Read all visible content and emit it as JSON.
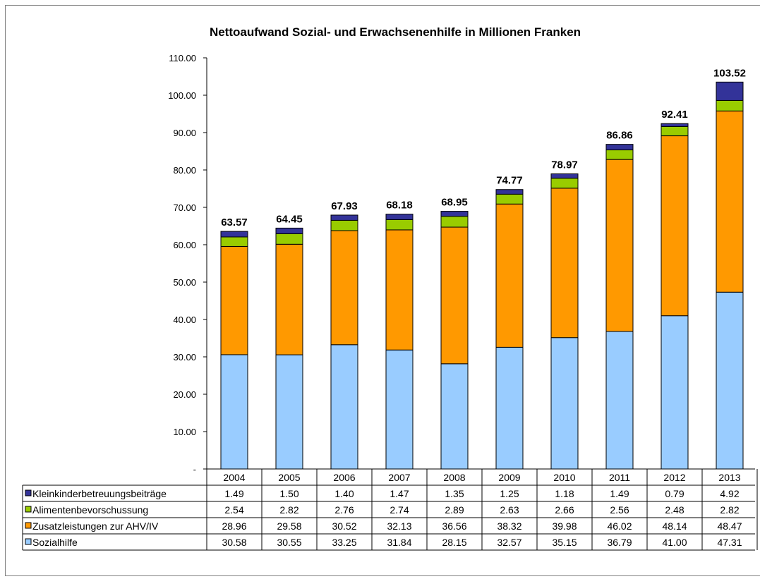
{
  "chart_data": {
    "type": "bar",
    "stacked": true,
    "title": "Nettoaufwand Sozial- und Erwachsenenhilfe in Millionen Franken",
    "categories": [
      "2004",
      "2005",
      "2006",
      "2007",
      "2008",
      "2009",
      "2010",
      "2011",
      "2012",
      "2013"
    ],
    "ylim": [
      0,
      110
    ],
    "yticks": [
      "-",
      "10.00",
      "20.00",
      "30.00",
      "40.00",
      "50.00",
      "60.00",
      "70.00",
      "80.00",
      "90.00",
      "100.00",
      "110.00"
    ],
    "totals": [
      "63.57",
      "64.45",
      "67.93",
      "68.18",
      "68.95",
      "74.77",
      "78.97",
      "86.86",
      "92.41",
      "103.52"
    ],
    "grid": false,
    "legend": "data-table-left",
    "series": [
      {
        "name": "Sozialhilfe",
        "color": "#99ccff",
        "values": [
          30.58,
          30.55,
          33.25,
          31.84,
          28.15,
          32.57,
          35.15,
          36.79,
          41.0,
          47.31
        ],
        "labels": [
          "30.58",
          "30.55",
          "33.25",
          "31.84",
          "28.15",
          "32.57",
          "35.15",
          "36.79",
          "41.00",
          "47.31"
        ]
      },
      {
        "name": "Zusatzleistungen zur AHV/IV",
        "color": "#ff9900",
        "values": [
          28.96,
          29.58,
          30.52,
          32.13,
          36.56,
          38.32,
          39.98,
          46.02,
          48.14,
          48.47
        ],
        "labels": [
          "28.96",
          "29.58",
          "30.52",
          "32.13",
          "36.56",
          "38.32",
          "39.98",
          "46.02",
          "48.14",
          "48.47"
        ]
      },
      {
        "name": "Alimentenbevorschussung",
        "color": "#99cc00",
        "values": [
          2.54,
          2.82,
          2.76,
          2.74,
          2.89,
          2.63,
          2.66,
          2.56,
          2.48,
          2.82
        ],
        "labels": [
          "2.54",
          "2.82",
          "2.76",
          "2.74",
          "2.89",
          "2.63",
          "2.66",
          "2.56",
          "2.48",
          "2.82"
        ]
      },
      {
        "name": "Kleinkinderbetreuungsbeiträge",
        "color": "#333399",
        "values": [
          1.49,
          1.5,
          1.4,
          1.47,
          1.35,
          1.25,
          1.18,
          1.49,
          0.79,
          4.92
        ],
        "labels": [
          "1.49",
          "1.50",
          "1.40",
          "1.47",
          "1.35",
          "1.25",
          "1.18",
          "1.49",
          "0.79",
          "4.92"
        ]
      }
    ],
    "table_row_order": [
      3,
      2,
      1,
      0
    ]
  }
}
